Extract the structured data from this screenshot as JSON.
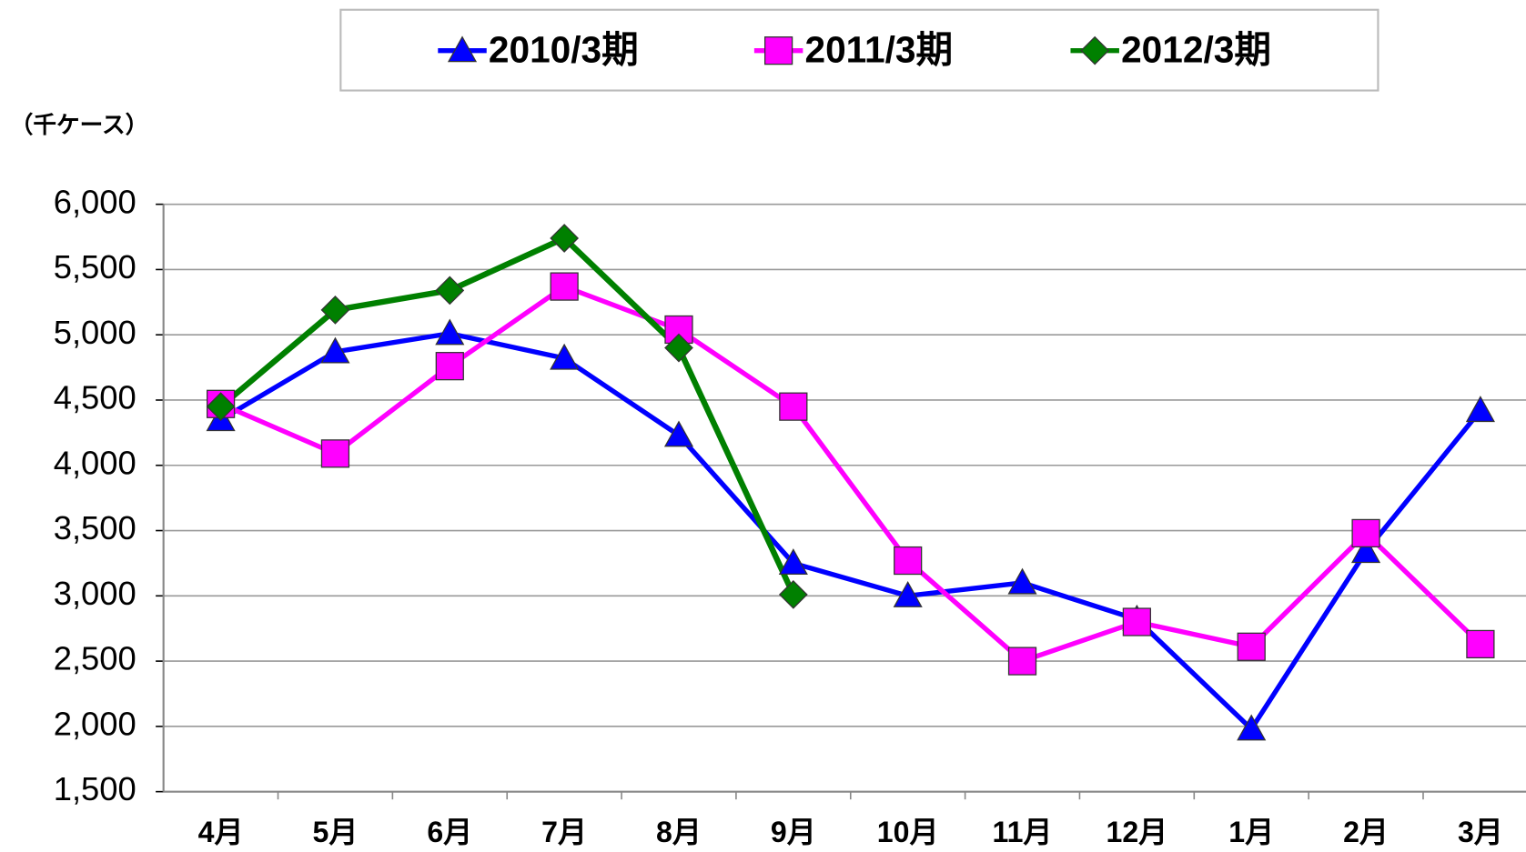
{
  "chart_data": {
    "type": "line",
    "y_axis_label": "（千ケース）",
    "categories": [
      "4月",
      "5月",
      "6月",
      "7月",
      "8月",
      "9月",
      "10月",
      "11月",
      "12月",
      "1月",
      "2月",
      "3月"
    ],
    "series": [
      {
        "name": "2010/3期",
        "color": "#0000ff",
        "marker": "triangle",
        "values": [
          4350,
          4870,
          5010,
          4820,
          4230,
          3250,
          3000,
          3100,
          2820,
          1980,
          3340,
          4420
        ]
      },
      {
        "name": "2011/3期",
        "color": "#ff00ff",
        "marker": "square",
        "values": [
          4470,
          4090,
          4760,
          5370,
          5040,
          4450,
          3270,
          2500,
          2800,
          2610,
          3480,
          2630
        ]
      },
      {
        "name": "2012/3期",
        "color": "#008000",
        "marker": "diamond",
        "values": [
          4450,
          5190,
          5340,
          5740,
          4900,
          3010,
          null,
          null,
          null,
          null,
          null,
          null
        ]
      }
    ],
    "ylim": [
      1500,
      6000
    ],
    "yticks": [
      {
        "value": 1500,
        "label": "1,500"
      },
      {
        "value": 2000,
        "label": "2,000"
      },
      {
        "value": 2500,
        "label": "2,500"
      },
      {
        "value": 3000,
        "label": "3,000"
      },
      {
        "value": 3500,
        "label": "3,500"
      },
      {
        "value": 4000,
        "label": "4,000"
      },
      {
        "value": 4500,
        "label": "4,500"
      },
      {
        "value": 5000,
        "label": "5,000"
      },
      {
        "value": 5500,
        "label": "5,500"
      },
      {
        "value": 6000,
        "label": "6,000"
      }
    ],
    "grid": true,
    "legend": "top"
  }
}
